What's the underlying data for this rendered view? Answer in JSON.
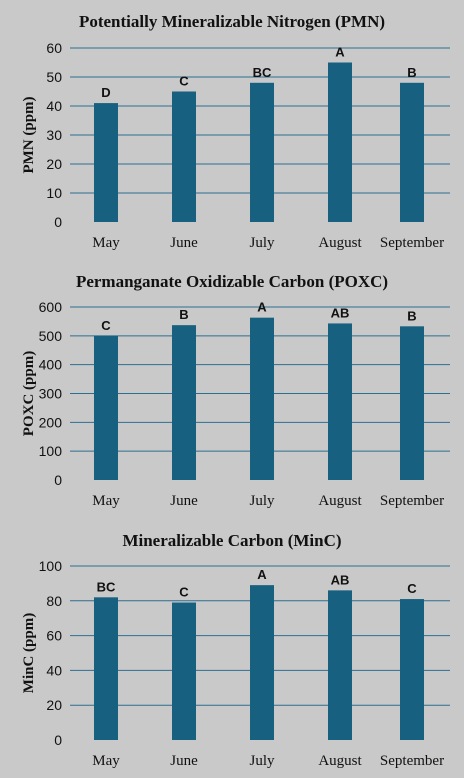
{
  "chart_data": [
    {
      "type": "bar",
      "title": "Potentially Mineralizable Nitrogen (PMN)",
      "ylabel": "PMN (ppm)",
      "xlabel": "",
      "categories": [
        "May",
        "June",
        "July",
        "August",
        "September"
      ],
      "values": [
        41,
        45,
        48,
        55,
        48
      ],
      "data_labels": [
        "D",
        "C",
        "BC",
        "A",
        "B"
      ],
      "ylim": [
        0,
        60
      ],
      "yticks": [
        0,
        10,
        20,
        30,
        40,
        50,
        60
      ],
      "grid": true,
      "bar_color": "#17607f"
    },
    {
      "type": "bar",
      "title": "Permanganate Oxidizable Carbon (POXC)",
      "ylabel": "POXC (ppm)",
      "xlabel": "",
      "categories": [
        "May",
        "June",
        "July",
        "August",
        "September"
      ],
      "values": [
        500,
        537,
        563,
        543,
        533
      ],
      "data_labels": [
        "C",
        "B",
        "A",
        "AB",
        "B"
      ],
      "ylim": [
        0,
        600
      ],
      "yticks": [
        0,
        100,
        200,
        300,
        400,
        500,
        600
      ],
      "grid": true,
      "bar_color": "#17607f"
    },
    {
      "type": "bar",
      "title": "Mineralizable Carbon (MinC)",
      "ylabel": "MinC (ppm)",
      "xlabel": "",
      "categories": [
        "May",
        "June",
        "July",
        "August",
        "September"
      ],
      "values": [
        82,
        79,
        89,
        86,
        81
      ],
      "data_labels": [
        "BC",
        "C",
        "A",
        "AB",
        "C"
      ],
      "ylim": [
        0,
        100
      ],
      "yticks": [
        0,
        20,
        40,
        60,
        80,
        100
      ],
      "grid": true,
      "bar_color": "#17607f"
    }
  ]
}
